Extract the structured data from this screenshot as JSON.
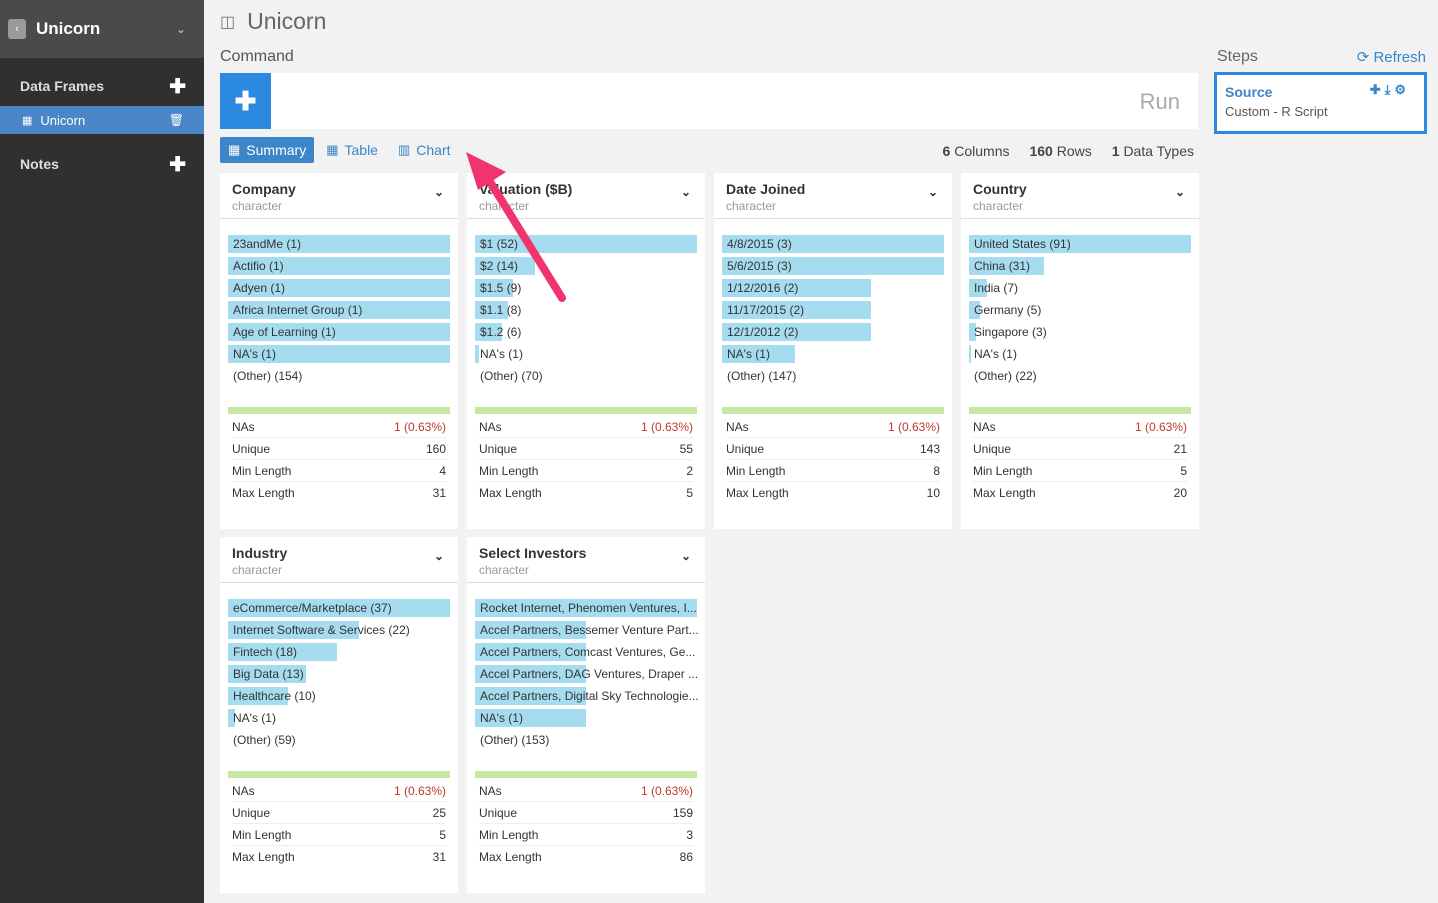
{
  "sidebar": {
    "app_title": "Unicorn",
    "data_frames_label": "Data Frames",
    "active_item": "Unicorn",
    "notes_label": "Notes"
  },
  "main": {
    "title": "Unicorn",
    "command_label": "Command",
    "run_label": "Run",
    "tabs": [
      "Summary",
      "Table",
      "Chart"
    ],
    "stats": {
      "columns_num": "6",
      "columns_label": "Columns",
      "rows_num": "160",
      "rows_label": "Rows",
      "types_num": "1",
      "types_label": "Data Types"
    }
  },
  "steps": {
    "label": "Steps",
    "refresh": "Refresh",
    "card": {
      "title": "Source",
      "subtitle": "Custom - R Script"
    }
  },
  "stat_labels": [
    "NAs",
    "Unique",
    "Min Length",
    "Max Length"
  ],
  "cards": [
    {
      "name": "Company",
      "type": "character",
      "bars": [
        {
          "label": "23andMe (1)",
          "fill": 1.0
        },
        {
          "label": "Actifio (1)",
          "fill": 1.0
        },
        {
          "label": "Adyen (1)",
          "fill": 1.0
        },
        {
          "label": "Africa Internet Group (1)",
          "fill": 1.0
        },
        {
          "label": "Age of Learning (1)",
          "fill": 1.0
        },
        {
          "label": "NA's (1)",
          "fill": 1.0
        },
        {
          "label": "(Other) (154)",
          "fill": 0
        }
      ],
      "stats": [
        "1 (0.63%)",
        "160",
        "4",
        "31"
      ]
    },
    {
      "name": "Valuation ($B)",
      "type": "character",
      "bars": [
        {
          "label": "$1 (52)",
          "fill": 1.0
        },
        {
          "label": "$2 (14)",
          "fill": 0.27
        },
        {
          "label": "$1.5 (9)",
          "fill": 0.17
        },
        {
          "label": "$1.1 (8)",
          "fill": 0.15
        },
        {
          "label": "$1.2 (6)",
          "fill": 0.12
        },
        {
          "label": "NA's (1)",
          "fill": 0.02
        },
        {
          "label": "(Other) (70)",
          "fill": 0
        }
      ],
      "stats": [
        "1 (0.63%)",
        "55",
        "2",
        "5"
      ]
    },
    {
      "name": "Date Joined",
      "type": "character",
      "bars": [
        {
          "label": "4/8/2015 (3)",
          "fill": 1.0
        },
        {
          "label": "5/6/2015 (3)",
          "fill": 1.0
        },
        {
          "label": "1/12/2016 (2)",
          "fill": 0.67
        },
        {
          "label": "11/17/2015 (2)",
          "fill": 0.67
        },
        {
          "label": "12/1/2012 (2)",
          "fill": 0.67
        },
        {
          "label": "NA's (1)",
          "fill": 0.33
        },
        {
          "label": "(Other) (147)",
          "fill": 0
        }
      ],
      "stats": [
        "1 (0.63%)",
        "143",
        "8",
        "10"
      ]
    },
    {
      "name": "Country",
      "type": "character",
      "bars": [
        {
          "label": "United States (91)",
          "fill": 1.0
        },
        {
          "label": "China (31)",
          "fill": 0.34
        },
        {
          "label": "India (7)",
          "fill": 0.08
        },
        {
          "label": "Germany (5)",
          "fill": 0.05
        },
        {
          "label": "Singapore (3)",
          "fill": 0.03
        },
        {
          "label": "NA's (1)",
          "fill": 0.01
        },
        {
          "label": "(Other) (22)",
          "fill": 0
        }
      ],
      "stats": [
        "1 (0.63%)",
        "21",
        "5",
        "20"
      ]
    },
    {
      "name": "Industry",
      "type": "character",
      "bars": [
        {
          "label": "eCommerce/Marketplace (37)",
          "fill": 1.0
        },
        {
          "label": "Internet Software & Services (22)",
          "fill": 0.59
        },
        {
          "label": "Fintech (18)",
          "fill": 0.49
        },
        {
          "label": "Big Data (13)",
          "fill": 0.35
        },
        {
          "label": "Healthcare (10)",
          "fill": 0.27
        },
        {
          "label": "NA's (1)",
          "fill": 0.03
        },
        {
          "label": "(Other) (59)",
          "fill": 0
        }
      ],
      "stats": [
        "1 (0.63%)",
        "25",
        "5",
        "31"
      ]
    },
    {
      "name": "Select Investors",
      "type": "character",
      "bars": [
        {
          "label": "Rocket Internet, Phenomen Ventures, I...",
          "fill": 1.0
        },
        {
          "label": "Accel Partners, Bessemer Venture Part...",
          "fill": 0.5
        },
        {
          "label": "Accel Partners, Comcast Ventures, Ge...",
          "fill": 0.5
        },
        {
          "label": "Accel Partners, DAG Ventures, Draper ...",
          "fill": 0.5
        },
        {
          "label": "Accel Partners, Digital Sky Technologie...",
          "fill": 0.5
        },
        {
          "label": "NA's (1)",
          "fill": 0.5
        },
        {
          "label": "(Other) (153)",
          "fill": 0
        }
      ],
      "stats": [
        "1 (0.63%)",
        "159",
        "3",
        "86"
      ]
    }
  ]
}
